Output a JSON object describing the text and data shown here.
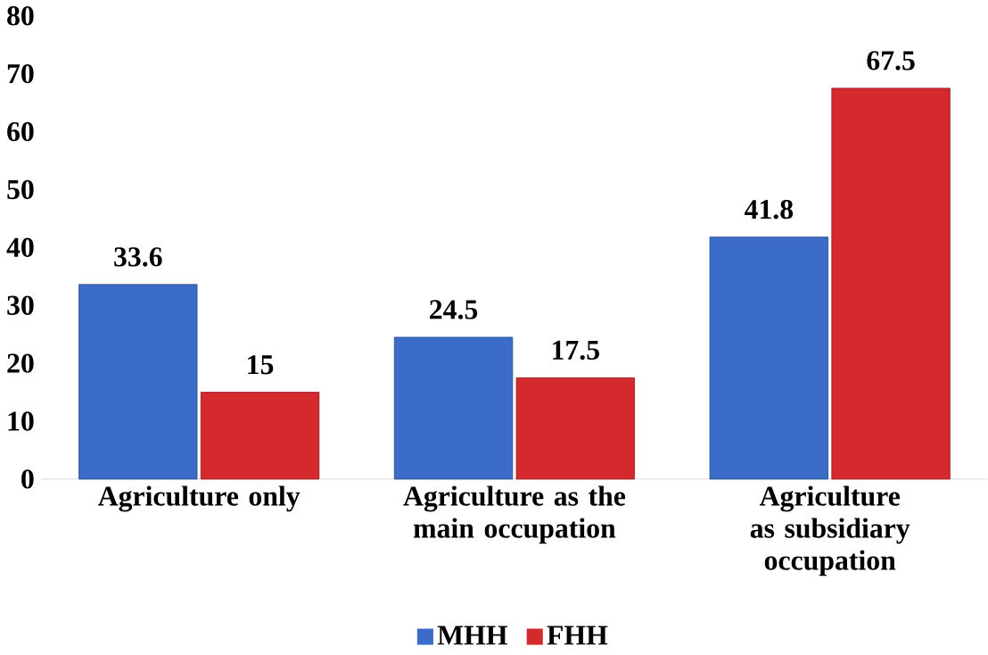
{
  "chart_data": {
    "type": "bar",
    "categories": [
      "Agriculture only",
      "Agriculture as the main occupation",
      "Agriculture as subsidiary occupation"
    ],
    "series": [
      {
        "name": "MHH",
        "color": "#3b6cc8",
        "values": [
          33.6,
          24.5,
          41.8
        ]
      },
      {
        "name": "FHH",
        "color": "#d42a2e",
        "values": [
          15,
          17.5,
          67.5
        ]
      }
    ],
    "ylim": [
      0,
      80
    ],
    "yticks": [
      0,
      10,
      20,
      30,
      40,
      50,
      60,
      70,
      80
    ],
    "data_labels": true,
    "grid": false,
    "legend": "bottom"
  }
}
